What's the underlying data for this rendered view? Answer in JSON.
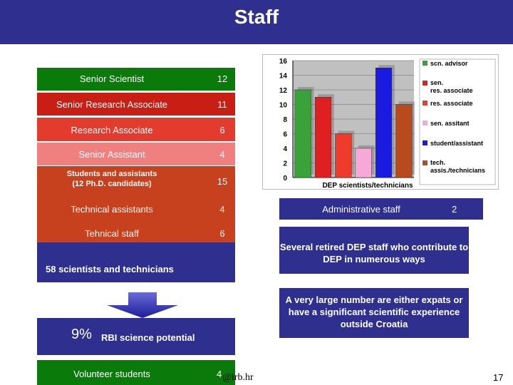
{
  "header": {
    "title": "Staff",
    "bg_color": "#2f2f8f"
  },
  "staff_rows": [
    {
      "label": "Senior Scientist",
      "value": "12",
      "color": "#0a7a0a"
    },
    {
      "label": "Senior Research Associate",
      "value": "11",
      "color": "#c81e14"
    },
    {
      "label": "Research Associate",
      "value": "6",
      "color": "#e33b2e"
    },
    {
      "label": "Senior Assistant",
      "value": "4",
      "color": "#f08080"
    },
    {
      "label": "Students and assistants",
      "label2": "(12 Ph.D. candidates)",
      "value": "15",
      "color": "#c8411e"
    },
    {
      "label": "Technical assistants",
      "value": "4",
      "color": "#c8411e"
    },
    {
      "label": "Tehnical staff",
      "value": "6",
      "color": "#c8411e"
    }
  ],
  "summary": {
    "text": "58 scientists and technicians"
  },
  "potential": {
    "percent": "9%",
    "text": "RBI science potential"
  },
  "volunteer": {
    "label": "Volunteer students",
    "value": "4"
  },
  "email_fragment": "@irb.hr",
  "page_number": "17",
  "admin": {
    "label": "Administrative staff",
    "value": "2"
  },
  "info_boxes": {
    "retired": "Several retired DEP staff who contribute to DEP in numerous ways",
    "expats": "A very large number are either expats or have a significant scientific experience outside Croatia"
  },
  "chart_data": {
    "type": "bar",
    "xlabel": "DEP scientists/technicians",
    "ylim": [
      0,
      16
    ],
    "yticks": [
      0,
      2,
      4,
      6,
      8,
      10,
      12,
      14,
      16
    ],
    "grid": true,
    "legend_position": "right",
    "series": [
      {
        "name": "scn. advisor",
        "values": [
          12
        ],
        "color": "#3aa23a"
      },
      {
        "name": "sen. res. associate",
        "values": [
          11
        ],
        "color": "#e02020"
      },
      {
        "name": "res. associate",
        "values": [
          6
        ],
        "color": "#ee3b2b"
      },
      {
        "name": "sen. assitant",
        "values": [
          4
        ],
        "color": "#f7a8d8"
      },
      {
        "name": "student/assistant",
        "values": [
          15
        ],
        "color": "#1a1ae0"
      },
      {
        "name": "tech. assis./technicians",
        "values": [
          10
        ],
        "color": "#b84a1e"
      }
    ]
  }
}
